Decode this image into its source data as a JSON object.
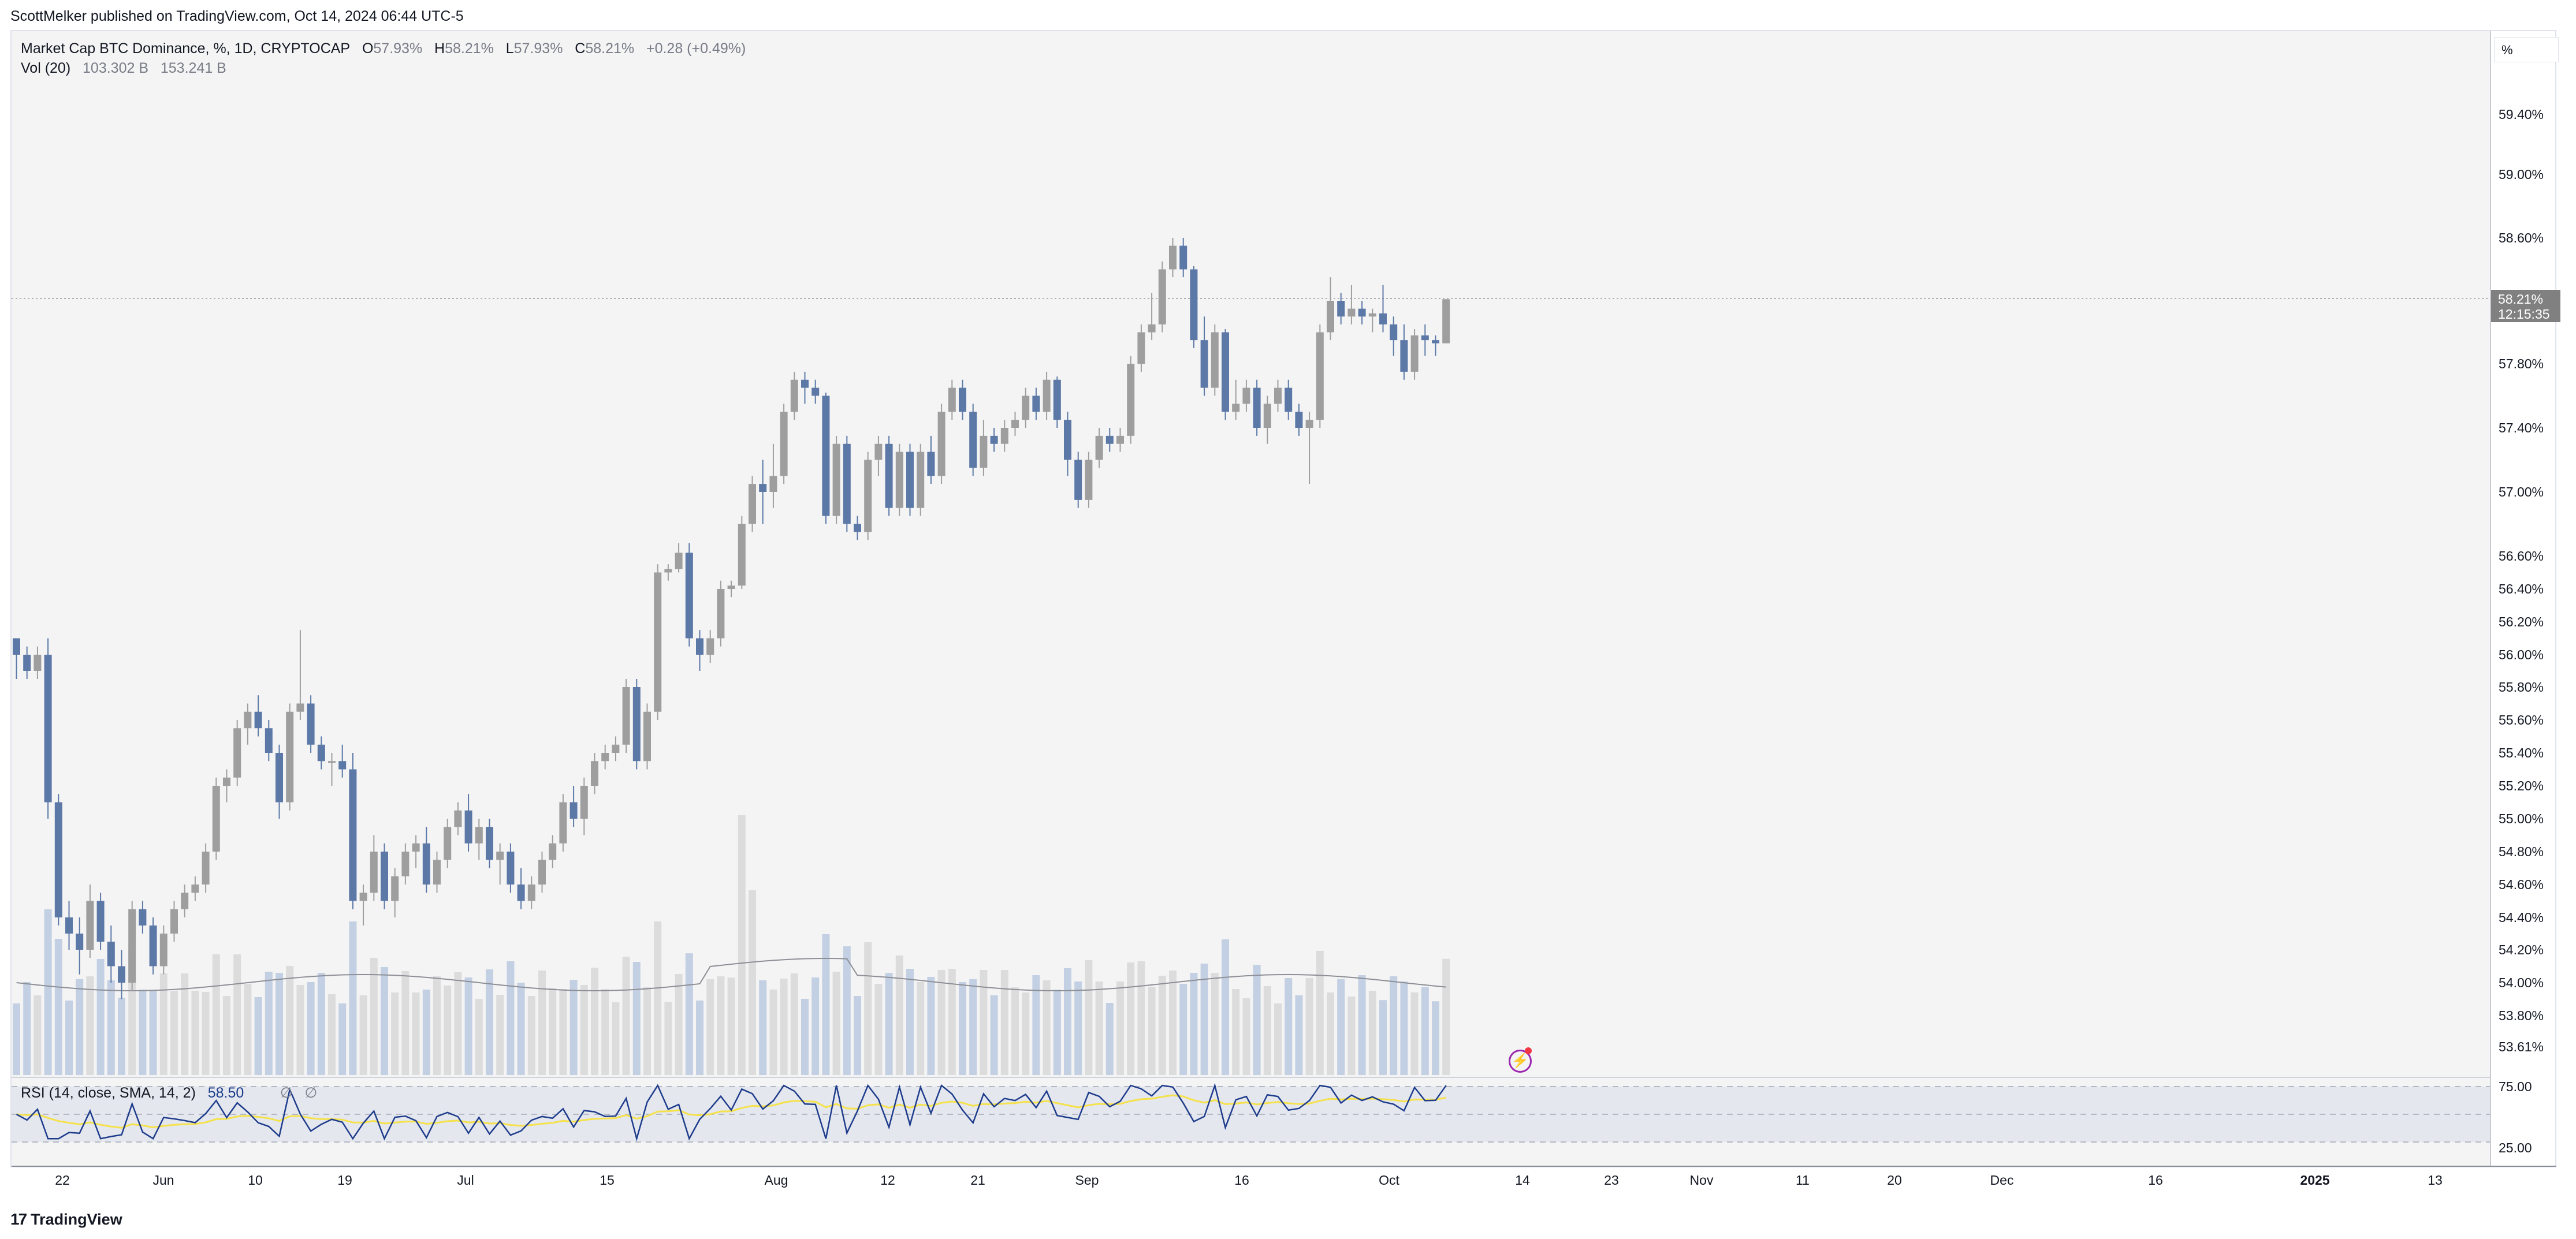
{
  "header": {
    "published_by": "ScottMelker published on TradingView.com, Oct 14, 2024 06:44 UTC-5"
  },
  "legend": {
    "symbol": "Market Cap BTC Dominance, %, 1D, CRYPTOCAP",
    "o_label": "O",
    "o_value": "57.93%",
    "h_label": "H",
    "h_value": "58.21%",
    "l_label": "L",
    "l_value": "57.93%",
    "c_label": "C",
    "c_value": "58.21%",
    "change": "+0.28 (+0.49%)",
    "vol_label": "Vol (20)",
    "vol_value1": "103.302 B",
    "vol_value2": "153.241 B"
  },
  "rsi_legend": {
    "label": "RSI (14, close, SMA, 14, 2)",
    "value": "58.50",
    "sym1": "∅",
    "sym2": "∅"
  },
  "price_scale": {
    "unit": "%",
    "last_price": "58.21%",
    "countdown": "12:15:35"
  },
  "footer": {
    "brand": "TradingView",
    "logo_mark": "17"
  },
  "colors": {
    "up": "#9e9e9e",
    "down": "#5b78a7",
    "vol_up": "#dcdcdc",
    "vol_down": "#c3cfe2",
    "rsi_line": "#1e3c8c",
    "rsi_ma": "#f5e14b",
    "bg": "#f4f4f4"
  },
  "chart_data": {
    "type": "candlestick",
    "title": "Market Cap BTC Dominance, %, 1D, CRYPTOCAP",
    "price_ticks": [
      "59.40%",
      "59.00%",
      "58.60%",
      "57.80%",
      "57.40%",
      "57.00%",
      "56.60%",
      "56.40%",
      "56.20%",
      "56.00%",
      "55.80%",
      "55.60%",
      "55.40%",
      "55.20%",
      "55.00%",
      "54.80%",
      "54.60%",
      "54.40%",
      "54.20%",
      "54.00%",
      "53.80%",
      "53.61%"
    ],
    "rsi_ticks": [
      "75.00",
      "25.00"
    ],
    "x_ticks": [
      "22",
      "Jun",
      "10",
      "19",
      "Jul",
      "15",
      "Aug",
      "12",
      "21",
      "Sep",
      "16",
      "Oct",
      "14",
      "23",
      "Nov",
      "11",
      "20",
      "Dec",
      "16",
      "2025",
      "13"
    ],
    "candles": [
      [
        56.1,
        56.1,
        55.85,
        56.0
      ],
      [
        56.0,
        56.05,
        55.85,
        55.9
      ],
      [
        55.9,
        56.05,
        55.85,
        56.0
      ],
      [
        56.0,
        56.1,
        55.0,
        55.1
      ],
      [
        55.1,
        55.15,
        54.35,
        54.4
      ],
      [
        54.4,
        54.5,
        54.2,
        54.3
      ],
      [
        54.3,
        54.4,
        54.05,
        54.2
      ],
      [
        54.2,
        54.6,
        54.15,
        54.5
      ],
      [
        54.5,
        54.55,
        54.2,
        54.25
      ],
      [
        54.25,
        54.35,
        54.0,
        54.1
      ],
      [
        54.1,
        54.2,
        53.9,
        54.0
      ],
      [
        54.0,
        54.5,
        53.95,
        54.45
      ],
      [
        54.45,
        54.5,
        54.3,
        54.35
      ],
      [
        54.35,
        54.4,
        54.05,
        54.1
      ],
      [
        54.1,
        54.35,
        54.05,
        54.3
      ],
      [
        54.3,
        54.5,
        54.25,
        54.45
      ],
      [
        54.45,
        54.6,
        54.4,
        54.55
      ],
      [
        54.55,
        54.65,
        54.5,
        54.6
      ],
      [
        54.6,
        54.85,
        54.55,
        54.8
      ],
      [
        54.8,
        55.25,
        54.75,
        55.2
      ],
      [
        55.2,
        55.3,
        55.1,
        55.25
      ],
      [
        55.25,
        55.6,
        55.2,
        55.55
      ],
      [
        55.55,
        55.7,
        55.45,
        55.65
      ],
      [
        55.65,
        55.75,
        55.5,
        55.55
      ],
      [
        55.55,
        55.6,
        55.35,
        55.4
      ],
      [
        55.4,
        55.45,
        55.0,
        55.1
      ],
      [
        55.1,
        55.7,
        55.05,
        55.65
      ],
      [
        55.65,
        56.15,
        55.6,
        55.7
      ],
      [
        55.7,
        55.75,
        55.4,
        55.45
      ],
      [
        55.45,
        55.5,
        55.3,
        55.35
      ],
      [
        55.35,
        55.4,
        55.2,
        55.35
      ],
      [
        55.35,
        55.45,
        55.25,
        55.3
      ],
      [
        55.3,
        55.4,
        54.45,
        54.5
      ],
      [
        54.5,
        54.6,
        54.35,
        54.55
      ],
      [
        54.55,
        54.9,
        54.5,
        54.8
      ],
      [
        54.8,
        54.85,
        54.45,
        54.5
      ],
      [
        54.5,
        54.7,
        54.4,
        54.65
      ],
      [
        54.65,
        54.85,
        54.6,
        54.8
      ],
      [
        54.8,
        54.9,
        54.7,
        54.85
      ],
      [
        54.85,
        54.95,
        54.55,
        54.6
      ],
      [
        54.6,
        54.8,
        54.55,
        54.75
      ],
      [
        54.75,
        55.0,
        54.7,
        54.95
      ],
      [
        54.95,
        55.1,
        54.9,
        55.05
      ],
      [
        55.05,
        55.15,
        54.8,
        54.85
      ],
      [
        54.85,
        55.0,
        54.75,
        54.95
      ],
      [
        54.95,
        55.0,
        54.7,
        54.75
      ],
      [
        54.75,
        54.85,
        54.6,
        54.8
      ],
      [
        54.8,
        54.85,
        54.55,
        54.6
      ],
      [
        54.6,
        54.7,
        54.45,
        54.5
      ],
      [
        54.5,
        54.65,
        54.45,
        54.6
      ],
      [
        54.6,
        54.8,
        54.55,
        54.75
      ],
      [
        54.75,
        54.9,
        54.7,
        54.85
      ],
      [
        54.85,
        55.15,
        54.8,
        55.1
      ],
      [
        55.1,
        55.2,
        54.95,
        55.0
      ],
      [
        55.0,
        55.25,
        54.9,
        55.2
      ],
      [
        55.2,
        55.4,
        55.15,
        55.35
      ],
      [
        55.35,
        55.45,
        55.3,
        55.4
      ],
      [
        55.4,
        55.5,
        55.35,
        55.45
      ],
      [
        55.45,
        55.85,
        55.4,
        55.8
      ],
      [
        55.8,
        55.85,
        55.3,
        55.35
      ],
      [
        55.35,
        55.7,
        55.3,
        55.65
      ],
      [
        55.65,
        56.55,
        55.6,
        56.5
      ],
      [
        56.5,
        56.55,
        56.45,
        56.52
      ],
      [
        56.52,
        56.68,
        56.5,
        56.62
      ],
      [
        56.62,
        56.68,
        56.05,
        56.1
      ],
      [
        56.1,
        56.15,
        55.9,
        56.0
      ],
      [
        56.0,
        56.15,
        55.95,
        56.1
      ],
      [
        56.1,
        56.45,
        56.05,
        56.4
      ],
      [
        56.4,
        56.45,
        56.35,
        56.42
      ],
      [
        56.42,
        56.85,
        56.4,
        56.8
      ],
      [
        56.8,
        57.1,
        56.75,
        57.05
      ],
      [
        57.05,
        57.2,
        56.8,
        57.0
      ],
      [
        57.0,
        57.3,
        56.9,
        57.1
      ],
      [
        57.1,
        57.55,
        57.05,
        57.5
      ],
      [
        57.5,
        57.75,
        57.45,
        57.7
      ],
      [
        57.7,
        57.75,
        57.55,
        57.65
      ],
      [
        57.65,
        57.7,
        57.55,
        57.6
      ],
      [
        57.6,
        57.62,
        56.8,
        56.85
      ],
      [
        56.85,
        57.35,
        56.8,
        57.3
      ],
      [
        57.3,
        57.35,
        56.75,
        56.8
      ],
      [
        56.8,
        56.85,
        56.7,
        56.75
      ],
      [
        56.75,
        57.25,
        56.7,
        57.2
      ],
      [
        57.2,
        57.35,
        57.1,
        57.3
      ],
      [
        57.3,
        57.35,
        56.85,
        56.9
      ],
      [
        56.9,
        57.3,
        56.85,
        57.25
      ],
      [
        57.25,
        57.3,
        56.85,
        56.9
      ],
      [
        56.9,
        57.3,
        56.85,
        57.25
      ],
      [
        57.25,
        57.35,
        57.05,
        57.1
      ],
      [
        57.1,
        57.55,
        57.05,
        57.5
      ],
      [
        57.5,
        57.7,
        57.45,
        57.65
      ],
      [
        57.65,
        57.7,
        57.45,
        57.5
      ],
      [
        57.5,
        57.55,
        57.1,
        57.15
      ],
      [
        57.15,
        57.45,
        57.1,
        57.35
      ],
      [
        57.35,
        57.4,
        57.25,
        57.3
      ],
      [
        57.3,
        57.45,
        57.25,
        57.4
      ],
      [
        57.4,
        57.5,
        57.35,
        57.45
      ],
      [
        57.45,
        57.65,
        57.4,
        57.6
      ],
      [
        57.6,
        57.65,
        57.45,
        57.5
      ],
      [
        57.5,
        57.75,
        57.45,
        57.7
      ],
      [
        57.7,
        57.72,
        57.4,
        57.45
      ],
      [
        57.45,
        57.5,
        57.1,
        57.2
      ],
      [
        57.2,
        57.25,
        56.9,
        56.95
      ],
      [
        56.95,
        57.25,
        56.9,
        57.2
      ],
      [
        57.2,
        57.4,
        57.15,
        57.35
      ],
      [
        57.35,
        57.4,
        57.25,
        57.3
      ],
      [
        57.3,
        57.4,
        57.25,
        57.35
      ],
      [
        57.35,
        57.85,
        57.3,
        57.8
      ],
      [
        57.8,
        58.05,
        57.75,
        58.0
      ],
      [
        58.0,
        58.25,
        57.95,
        58.05
      ],
      [
        58.05,
        58.45,
        58.0,
        58.4
      ],
      [
        58.4,
        58.6,
        58.35,
        58.55
      ],
      [
        58.55,
        58.6,
        58.35,
        58.4
      ],
      [
        58.4,
        58.42,
        57.9,
        57.95
      ],
      [
        57.95,
        58.1,
        57.6,
        57.65
      ],
      [
        57.65,
        58.05,
        57.6,
        58.0
      ],
      [
        58.0,
        58.02,
        57.45,
        57.5
      ],
      [
        57.5,
        57.7,
        57.45,
        57.55
      ],
      [
        57.55,
        57.7,
        57.5,
        57.65
      ],
      [
        57.65,
        57.7,
        57.35,
        57.4
      ],
      [
        57.4,
        57.6,
        57.3,
        57.55
      ],
      [
        57.55,
        57.7,
        57.5,
        57.65
      ],
      [
        57.65,
        57.7,
        57.45,
        57.5
      ],
      [
        57.5,
        57.55,
        57.35,
        57.4
      ],
      [
        57.4,
        57.5,
        57.05,
        57.45
      ],
      [
        57.45,
        58.05,
        57.4,
        58.0
      ],
      [
        58.0,
        58.35,
        57.95,
        58.2
      ],
      [
        58.2,
        58.25,
        58.05,
        58.1
      ],
      [
        58.1,
        58.3,
        58.05,
        58.15
      ],
      [
        58.15,
        58.2,
        58.05,
        58.1
      ],
      [
        58.1,
        58.15,
        58.0,
        58.12
      ],
      [
        58.12,
        58.3,
        58.0,
        58.05
      ],
      [
        58.05,
        58.1,
        57.85,
        57.95
      ],
      [
        57.95,
        58.05,
        57.7,
        57.75
      ],
      [
        57.75,
        58.02,
        57.7,
        57.98
      ],
      [
        57.98,
        58.05,
        57.85,
        57.95
      ],
      [
        57.95,
        57.98,
        57.85,
        57.93
      ],
      [
        57.93,
        58.21,
        57.93,
        58.21
      ]
    ]
  }
}
